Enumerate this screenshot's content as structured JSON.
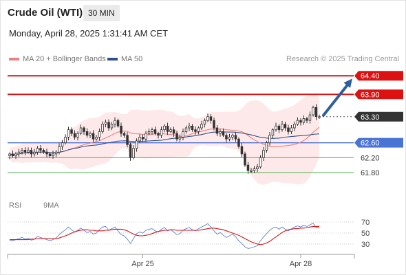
{
  "header": {
    "title": "Crude Oil (WTI)",
    "timeframe": "30 MIN"
  },
  "datetime": "Monday, April 28, 2025 1:31:41 AM CET",
  "legend": {
    "ma20": "MA 20 + Bollinger Bands",
    "ma50": "MA 50",
    "credit": "Research © 2025 Trading Central"
  },
  "rsi_legend": {
    "rsi": "RSI",
    "ma": "9MA"
  },
  "colors": {
    "resistance": "#dd1111",
    "support": "#4caf50",
    "pivot": "#4a73d6",
    "ma20": "#f08080",
    "ma50": "#2d4f8e",
    "rsi": "#5b7fd6",
    "rsi_ma": "#dd1111",
    "candle": "#333333",
    "bollinger": "#fde3e3",
    "arrow": "#2e5e9e"
  },
  "chart_data": {
    "type": "candlestick",
    "price_axis": {
      "min": 61.3,
      "max": 64.7
    },
    "levels": [
      {
        "price": 64.4,
        "label": "64.40",
        "kind": "resistance"
      },
      {
        "price": 63.9,
        "label": "63.90",
        "kind": "resistance"
      },
      {
        "price": 63.3,
        "label": "63.30",
        "kind": "current"
      },
      {
        "price": 62.6,
        "label": "62.60",
        "kind": "pivot"
      },
      {
        "price": 62.2,
        "label": "62.20",
        "kind": "support"
      },
      {
        "price": 61.8,
        "label": "61.80",
        "kind": "support"
      }
    ],
    "close": [
      62.3,
      62.25,
      62.3,
      62.35,
      62.4,
      62.35,
      62.4,
      62.3,
      62.35,
      62.45,
      62.4,
      62.35,
      62.3,
      62.25,
      62.3,
      62.35,
      62.5,
      62.6,
      62.75,
      62.95,
      62.85,
      62.75,
      62.85,
      63.0,
      62.9,
      62.8,
      62.85,
      62.7,
      62.75,
      62.9,
      63.1,
      63.15,
      63.0,
      63.1,
      63.2,
      63.05,
      62.85,
      62.8,
      62.55,
      62.2,
      62.45,
      62.65,
      62.75,
      62.7,
      62.85,
      62.9,
      62.95,
      62.85,
      62.8,
      62.95,
      63.05,
      62.9,
      62.95,
      62.85,
      62.7,
      62.75,
      62.9,
      63.0,
      63.05,
      62.95,
      62.9,
      63.0,
      63.1,
      63.2,
      63.3,
      63.2,
      63.0,
      62.85,
      62.9,
      62.8,
      62.7,
      62.75,
      62.8,
      62.7,
      62.5,
      62.3,
      62.0,
      61.85,
      61.85,
      61.9,
      61.95,
      62.2,
      62.4,
      62.6,
      62.8,
      62.95,
      63.05,
      62.95,
      63.1,
      63.0,
      62.9,
      63.0,
      63.1,
      63.2,
      63.15,
      63.25,
      63.2,
      63.35,
      63.55,
      63.3,
      63.3
    ],
    "x_axis": {
      "ticks": [
        {
          "label": "Apr 25",
          "index": 43
        },
        {
          "label": "Apr 28",
          "index": 94
        }
      ]
    },
    "rsi": {
      "axis": {
        "min": 15,
        "max": 80
      },
      "ticks": [
        70,
        50,
        30
      ],
      "rsi_values": [
        37,
        36,
        38,
        40,
        42,
        39,
        41,
        37,
        39,
        44,
        42,
        40,
        38,
        36,
        38,
        41,
        47,
        52,
        56,
        61,
        56,
        52,
        55,
        59,
        55,
        51,
        53,
        48,
        50,
        56,
        61,
        62,
        55,
        58,
        61,
        54,
        47,
        45,
        39,
        31,
        40,
        49,
        52,
        50,
        55,
        57,
        58,
        54,
        52,
        57,
        60,
        54,
        56,
        52,
        47,
        49,
        55,
        58,
        60,
        56,
        54,
        58,
        61,
        64,
        67,
        61,
        54,
        48,
        51,
        46,
        42,
        45,
        48,
        43,
        36,
        31,
        25,
        22,
        23,
        25,
        27,
        36,
        43,
        49,
        55,
        59,
        61,
        57,
        61,
        57,
        54,
        58,
        61,
        63,
        61,
        64,
        62,
        65,
        68,
        60,
        60
      ],
      "ma_values": [
        38,
        38,
        38,
        38,
        38,
        38,
        38,
        39,
        39,
        40,
        40,
        40,
        40,
        40,
        40,
        40,
        41,
        43,
        45,
        47,
        50,
        52,
        54,
        55,
        56,
        56,
        55,
        55,
        54,
        54,
        54,
        55,
        55,
        56,
        57,
        57,
        57,
        56,
        54,
        51,
        48,
        46,
        45,
        45,
        46,
        47,
        49,
        51,
        53,
        54,
        55,
        55,
        56,
        56,
        55,
        55,
        55,
        55,
        55,
        55,
        55,
        55,
        56,
        57,
        58,
        59,
        59,
        58,
        57,
        56,
        54,
        52,
        50,
        48,
        46,
        43,
        40,
        37,
        34,
        32,
        30,
        29,
        30,
        32,
        35,
        39,
        43,
        47,
        51,
        54,
        56,
        57,
        58,
        58,
        59,
        59,
        60,
        61,
        62,
        62,
        62
      ]
    }
  }
}
